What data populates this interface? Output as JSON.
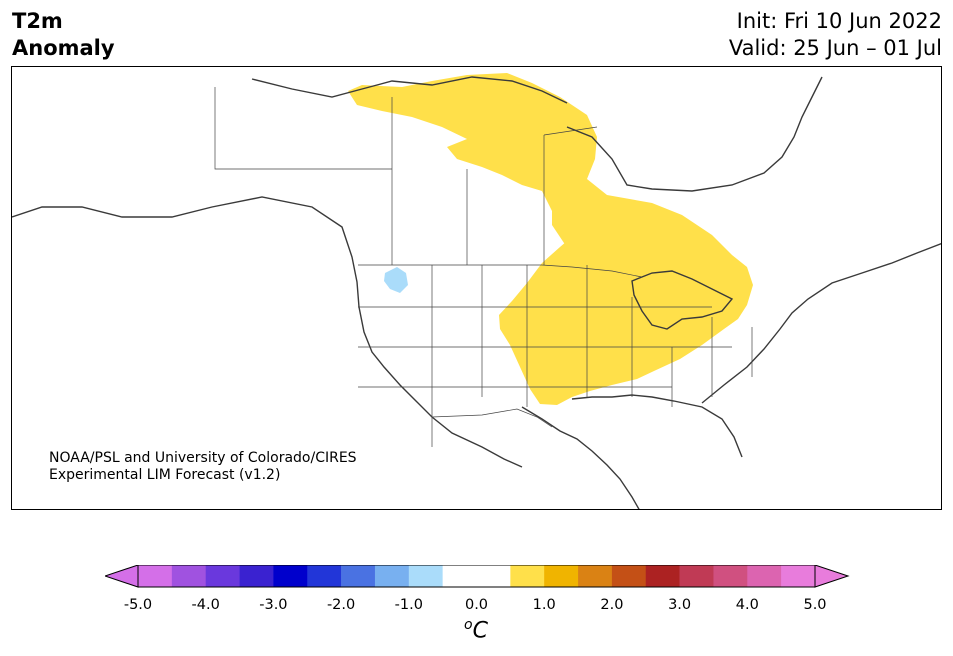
{
  "title": {
    "left_line1": "T2m",
    "left_line2": "Anomaly",
    "init": "Init: Fri 10 Jun 2022",
    "valid": "Valid: 25 Jun – 01 Jul"
  },
  "credit": {
    "line1": "NOAA/PSL and University of Colorado/CIRES",
    "line2": "Experimental LIM Forecast (v1.2)"
  },
  "colorbar": {
    "unit_symbol": "o",
    "unit_letter": "C",
    "ticks": [
      "-5.0",
      "-4.0",
      "-3.0",
      "-2.0",
      "-1.0",
      "0.0",
      "1.0",
      "2.0",
      "3.0",
      "4.0",
      "5.0"
    ],
    "colors": [
      "#d46fe8",
      "#a052e0",
      "#6a38dd",
      "#3a22d0",
      "#0000cc",
      "#2236d8",
      "#4a72e2",
      "#78b0f0",
      "#aadcfa",
      "#ffffff",
      "#ffffff",
      "#ffe04a",
      "#f0b400",
      "#da8214",
      "#c45016",
      "#ac2222",
      "#c03a55",
      "#d05080",
      "#dc64b0",
      "#e87cdc"
    ]
  },
  "map_colors": {
    "warm_anomaly": "#ffe04a",
    "cool_anomaly": "#aadcfa",
    "coastline": "#3a3a3a"
  }
}
